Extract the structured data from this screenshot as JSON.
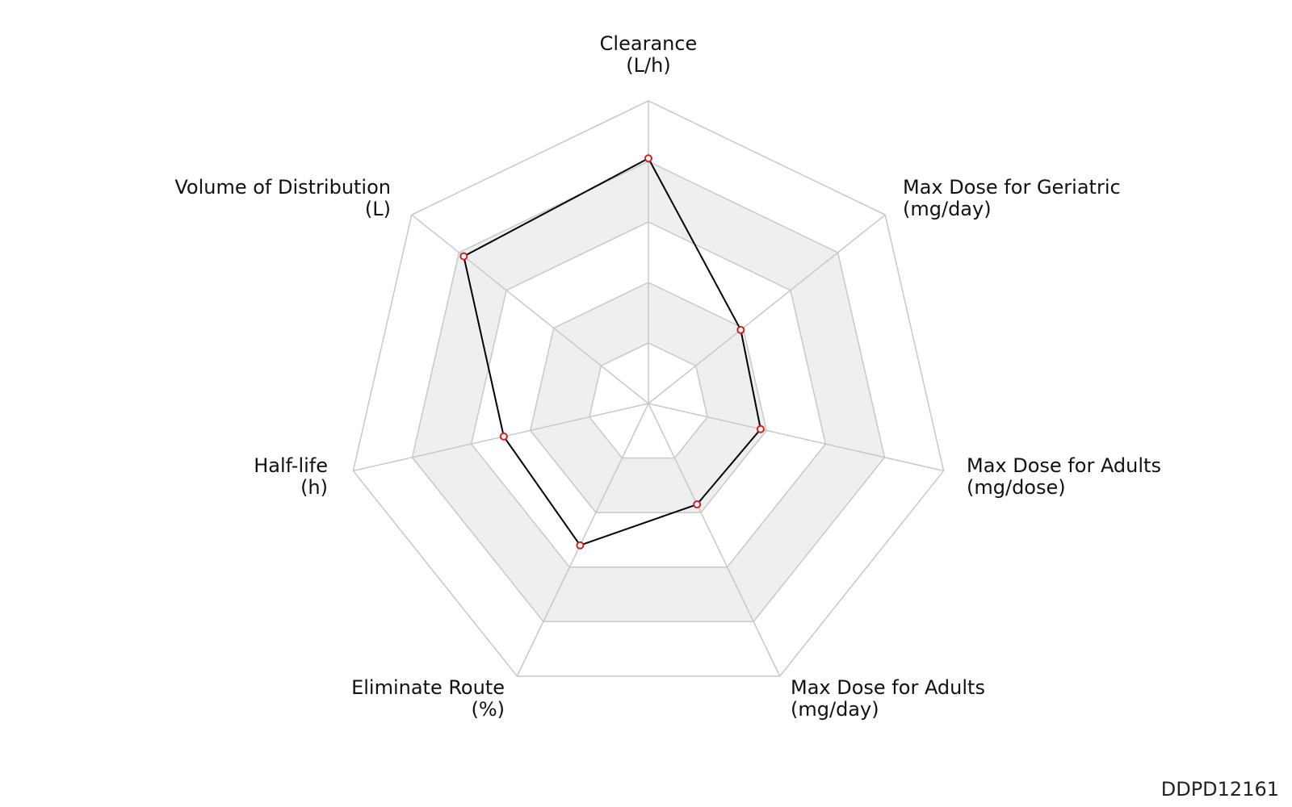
{
  "chart_data": {
    "type": "radar",
    "title": "",
    "axes": [
      {
        "name": "Clearance",
        "unit": "(L/h)"
      },
      {
        "name": "Max Dose for Geriatric",
        "unit": "(mg/day)"
      },
      {
        "name": "Max Dose for Adults",
        "unit": "(mg/dose)"
      },
      {
        "name": "Max Dose for Adults",
        "unit": "(mg/day)"
      },
      {
        "name": "Eliminate Route",
        "unit": "(%)"
      },
      {
        "name": "Half-life",
        "unit": "(h)"
      },
      {
        "name": "Volume of Distribution",
        "unit": "(L)"
      }
    ],
    "levels": 5,
    "range": [
      0,
      1
    ],
    "grid": true,
    "grid_band_colors": [
      "#ffffff",
      "#efefef"
    ],
    "grid_line_color": "#c8c8c8",
    "series": [
      {
        "values": [
          0.81,
          0.39,
          0.38,
          0.37,
          0.52,
          0.49,
          0.78
        ],
        "line_color": "#000000",
        "marker_edge_color": "#cc2222",
        "marker_face_color": "#ffffff"
      }
    ]
  },
  "footer": {
    "id_text": "DDPD12161"
  }
}
